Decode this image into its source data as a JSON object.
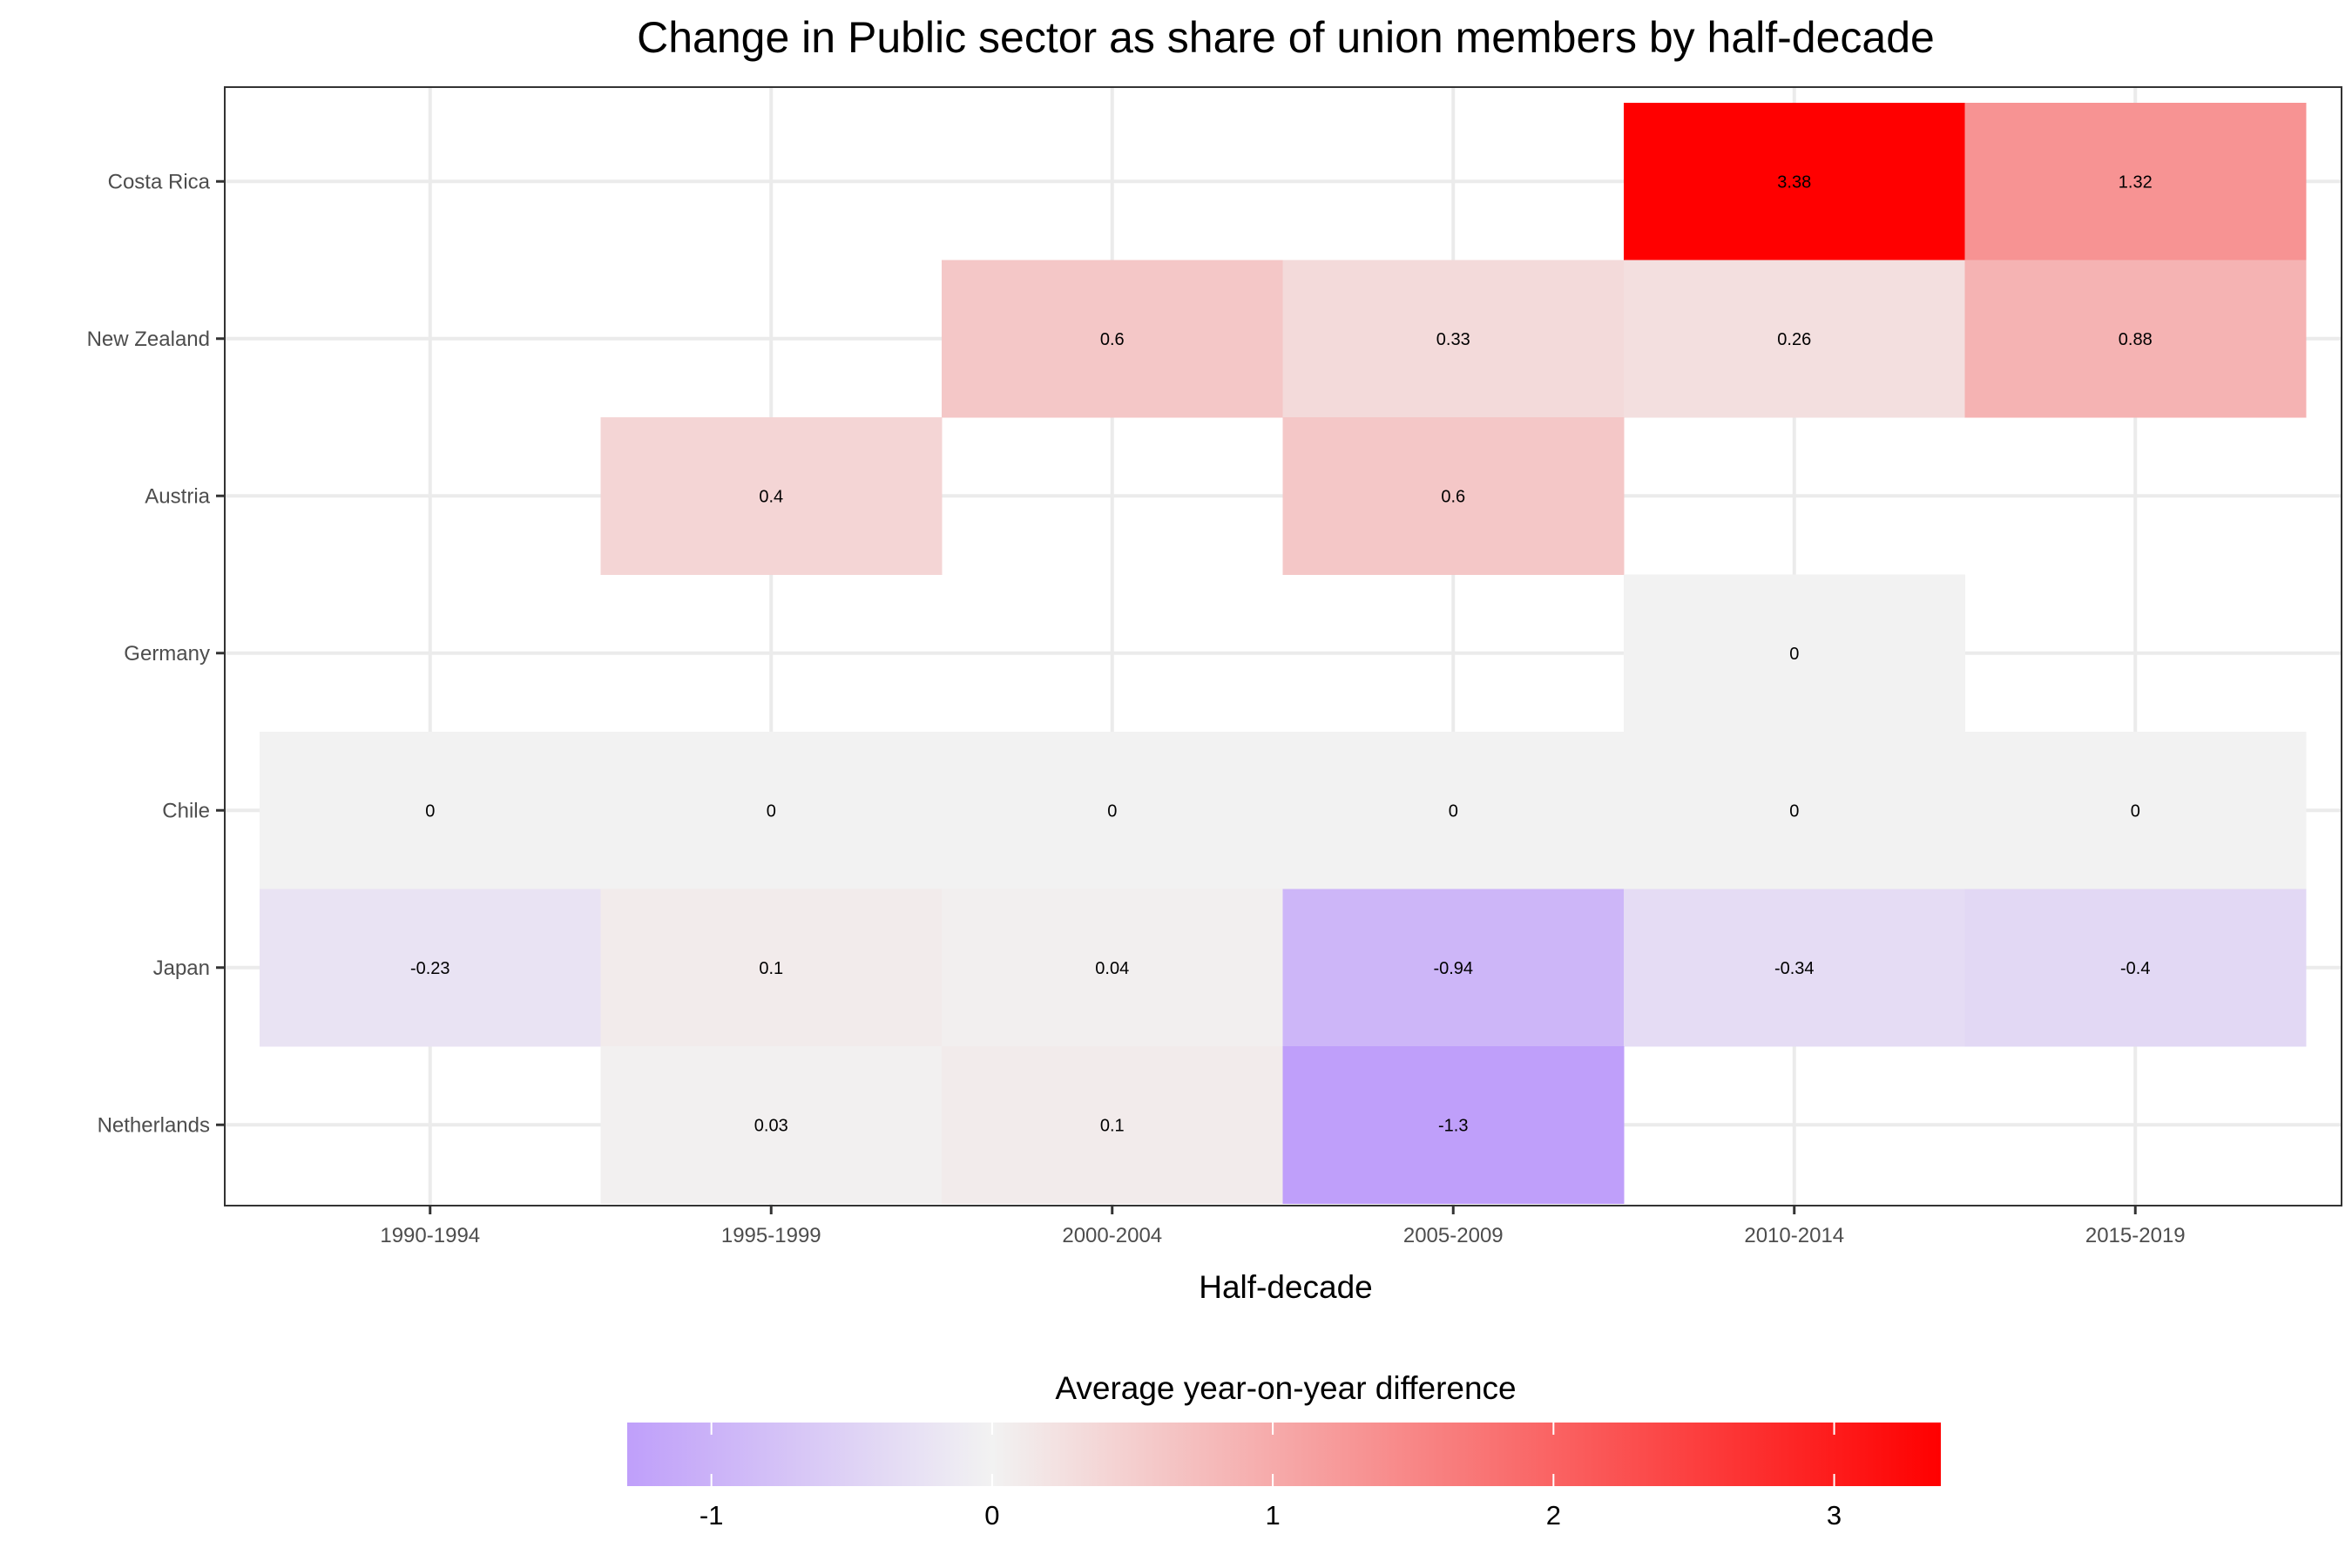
{
  "chart_data": {
    "type": "heatmap",
    "title": "Change in Public sector as share of union members by half-decade",
    "xlabel": "Half-decade",
    "ylabel": "",
    "x_categories": [
      "1990-1994",
      "1995-1999",
      "2000-2004",
      "2005-2009",
      "2010-2014",
      "2015-2019"
    ],
    "y_categories": [
      "Costa Rica",
      "New Zealand",
      "Austria",
      "Germany",
      "Chile",
      "Japan",
      "Netherlands"
    ],
    "cells": [
      {
        "country": "Costa Rica",
        "period": "2010-2014",
        "value": 3.38,
        "label": "3.38"
      },
      {
        "country": "Costa Rica",
        "period": "2015-2019",
        "value": 1.32,
        "label": "1.32"
      },
      {
        "country": "New Zealand",
        "period": "2000-2004",
        "value": 0.6,
        "label": "0.6"
      },
      {
        "country": "New Zealand",
        "period": "2005-2009",
        "value": 0.33,
        "label": "0.33"
      },
      {
        "country": "New Zealand",
        "period": "2010-2014",
        "value": 0.26,
        "label": "0.26"
      },
      {
        "country": "New Zealand",
        "period": "2015-2019",
        "value": 0.88,
        "label": "0.88"
      },
      {
        "country": "Austria",
        "period": "1995-1999",
        "value": 0.4,
        "label": "0.4"
      },
      {
        "country": "Austria",
        "period": "2005-2009",
        "value": 0.6,
        "label": "0.6"
      },
      {
        "country": "Germany",
        "period": "2010-2014",
        "value": 0,
        "label": "0"
      },
      {
        "country": "Chile",
        "period": "1990-1994",
        "value": 0,
        "label": "0"
      },
      {
        "country": "Chile",
        "period": "1995-1999",
        "value": 0,
        "label": "0"
      },
      {
        "country": "Chile",
        "period": "2000-2004",
        "value": 0,
        "label": "0"
      },
      {
        "country": "Chile",
        "period": "2005-2009",
        "value": 0,
        "label": "0"
      },
      {
        "country": "Chile",
        "period": "2010-2014",
        "value": 0,
        "label": "0"
      },
      {
        "country": "Chile",
        "period": "2015-2019",
        "value": 0,
        "label": "0"
      },
      {
        "country": "Japan",
        "period": "1990-1994",
        "value": -0.23,
        "label": "-0.23"
      },
      {
        "country": "Japan",
        "period": "1995-1999",
        "value": 0.1,
        "label": "0.1"
      },
      {
        "country": "Japan",
        "period": "2000-2004",
        "value": 0.04,
        "label": "0.04"
      },
      {
        "country": "Japan",
        "period": "2005-2009",
        "value": -0.94,
        "label": "-0.94"
      },
      {
        "country": "Japan",
        "period": "2010-2014",
        "value": -0.34,
        "label": "-0.34"
      },
      {
        "country": "Japan",
        "period": "2015-2019",
        "value": -0.4,
        "label": "-0.4"
      },
      {
        "country": "Netherlands",
        "period": "1995-1999",
        "value": 0.03,
        "label": "0.03"
      },
      {
        "country": "Netherlands",
        "period": "2000-2004",
        "value": 0.1,
        "label": "0.1"
      },
      {
        "country": "Netherlands",
        "period": "2005-2009",
        "value": -1.3,
        "label": "-1.3"
      }
    ],
    "legend": {
      "title": "Average year-on-year difference",
      "position": "bottom",
      "range": [
        -1.3,
        3.38
      ],
      "ticks": [
        -1,
        0,
        1,
        2,
        3
      ],
      "tick_labels": [
        "-1",
        "0",
        "1",
        "2",
        "3"
      ],
      "low_color": "#bf9ffa",
      "mid_color": "#f2f2f2",
      "high_color": "#ff0000",
      "midpoint": 0
    },
    "grid": true,
    "panel_border_color": "#333333",
    "grid_color": "#ebebeb"
  }
}
